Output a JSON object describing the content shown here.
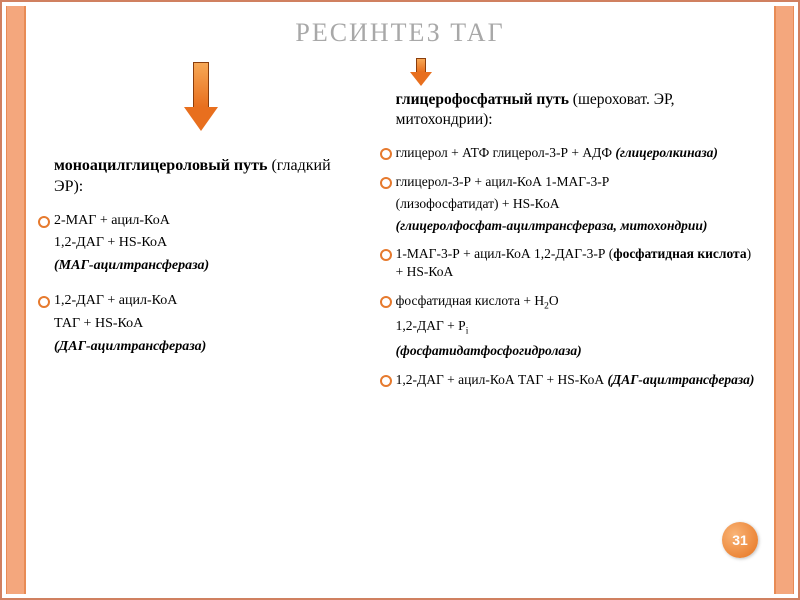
{
  "title": "РЕСИНТЕЗ ТАГ",
  "colors": {
    "accent": "#e67a2e",
    "title_color": "#a8a8a8",
    "band_bg": "#f4a77d",
    "band_border": "#e88b55",
    "frame_border": "#d08060",
    "badge_text": "#ffffff"
  },
  "page_number": "31",
  "left": {
    "heading_bold": "моноацилглицероловый путь",
    "heading_rest": " (гладкий ЭР):",
    "step1_bullet": "2-МАГ + ацил-КоА",
    "step1_line2": "1,2-ДАГ + HS-КоА",
    "step1_enzyme": "(МАГ-ацилтрансфераза)",
    "step2_bullet": "1,2-ДАГ + ацил-КоА",
    "step2_line2": "ТАГ + HS-КоА",
    "step2_enzyme": "(ДАГ-ацилтрансфераза)"
  },
  "right": {
    "heading_bold": "глицерофосфатный путь",
    "heading_rest": " (шероховат. ЭР,  митохондрии):",
    "step1_bullet": "глицерол + АТФ    глицерол-3-Р + АДФ ",
    "step1_enzyme": "(глицеролкиназа)",
    "step2_bullet": "глицерол-3-Р + ацил-КоА     1-МАГ-3-Р",
    "step2_line2": "(лизофосфатидат) + HS-КоА",
    "step2_enzyme": "(глицеролфосфат-ацилтрансфераза, митохондрии)",
    "step3_bullet_pre": "1-МАГ-3-Р + ацил-КоА     1,2-ДАГ-3-Р (",
    "step3_bullet_bold": "фосфатидная кислота",
    "step3_bullet_post": ") + HS-КоА",
    "step4_bullet_html": "фосфатидная кислота + H<sub>2</sub>O",
    "step4_line2_html": " 1,2-ДАГ + P<sub>i</sub>",
    "step4_enzyme": "(фосфатидатфосфогидролаза)",
    "step5_bullet": "1,2-ДАГ + ацил-КоА     ТАГ + HS-КоА ",
    "step5_enzyme": "(ДАГ-ацилтрансфераза)"
  }
}
